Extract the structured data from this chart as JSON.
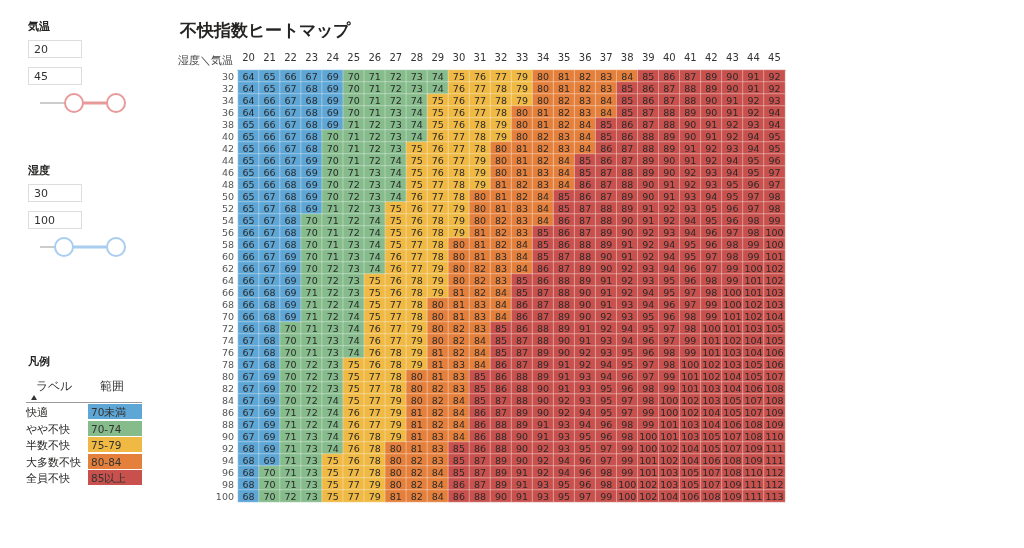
{
  "chart_data": [
    {
      "type": "heatmap",
      "title": "不快指数ヒートマップ",
      "annotations": [
        "湿度＼気温"
      ],
      "data_labels": true,
      "categories": [
        "20",
        "21",
        "22",
        "23",
        "24",
        "25",
        "26",
        "27",
        "28",
        "29",
        "30",
        "31",
        "32",
        "33",
        "34",
        "35",
        "36",
        "37",
        "38",
        "39",
        "40",
        "41",
        "42",
        "43",
        "44",
        "45"
      ],
      "y_categories": [
        "30",
        "32",
        "34",
        "36",
        "38",
        "40",
        "42",
        "44",
        "46",
        "48",
        "50",
        "52",
        "54",
        "56",
        "58",
        "60",
        "62",
        "64",
        "66",
        "68",
        "70",
        "72",
        "74",
        "76",
        "78",
        "80",
        "82",
        "84",
        "86",
        "88",
        "90",
        "92",
        "94",
        "96",
        "98",
        "100"
      ],
      "cells": [
        [
          64,
          65,
          66,
          67,
          69,
          70,
          71,
          72,
          73,
          74,
          75,
          76,
          77,
          79,
          80,
          81,
          82,
          83,
          84,
          85,
          86,
          87,
          89,
          90,
          91,
          92
        ],
        [
          64,
          65,
          67,
          68,
          69,
          70,
          71,
          72,
          73,
          74,
          76,
          77,
          78,
          79,
          80,
          81,
          82,
          83,
          85,
          86,
          87,
          88,
          89,
          90,
          91,
          92
        ],
        [
          64,
          66,
          67,
          68,
          69,
          70,
          71,
          72,
          74,
          75,
          76,
          77,
          78,
          79,
          80,
          82,
          83,
          84,
          85,
          86,
          87,
          88,
          90,
          91,
          92,
          93
        ],
        [
          64,
          66,
          67,
          68,
          69,
          70,
          71,
          73,
          74,
          75,
          76,
          77,
          78,
          80,
          81,
          82,
          83,
          84,
          85,
          87,
          88,
          89,
          90,
          91,
          92,
          94
        ],
        [
          65,
          66,
          67,
          68,
          69,
          71,
          72,
          73,
          74,
          75,
          76,
          78,
          79,
          80,
          81,
          82,
          84,
          85,
          86,
          87,
          88,
          90,
          91,
          92,
          93,
          94
        ],
        [
          65,
          66,
          67,
          68,
          70,
          71,
          72,
          73,
          74,
          76,
          77,
          78,
          79,
          80,
          82,
          83,
          84,
          85,
          86,
          88,
          89,
          90,
          91,
          92,
          94,
          95
        ],
        [
          65,
          66,
          67,
          68,
          70,
          71,
          72,
          73,
          75,
          76,
          77,
          78,
          80,
          81,
          82,
          83,
          84,
          86,
          87,
          88,
          89,
          91,
          92,
          93,
          94,
          95
        ],
        [
          65,
          66,
          67,
          69,
          70,
          71,
          72,
          74,
          75,
          76,
          77,
          79,
          80,
          81,
          82,
          84,
          85,
          86,
          87,
          89,
          90,
          91,
          92,
          94,
          95,
          96
        ],
        [
          65,
          66,
          68,
          69,
          70,
          71,
          73,
          74,
          75,
          76,
          78,
          79,
          80,
          81,
          83,
          84,
          85,
          87,
          88,
          89,
          90,
          92,
          93,
          94,
          95,
          97
        ],
        [
          65,
          66,
          68,
          69,
          70,
          72,
          73,
          74,
          75,
          77,
          78,
          79,
          81,
          82,
          83,
          84,
          86,
          87,
          88,
          90,
          91,
          92,
          93,
          95,
          96,
          97
        ],
        [
          65,
          67,
          68,
          69,
          70,
          72,
          73,
          74,
          76,
          77,
          78,
          80,
          81,
          82,
          84,
          85,
          86,
          87,
          89,
          90,
          91,
          93,
          94,
          95,
          97,
          98
        ],
        [
          65,
          67,
          68,
          69,
          71,
          72,
          73,
          75,
          76,
          77,
          79,
          80,
          81,
          83,
          84,
          85,
          87,
          88,
          89,
          91,
          92,
          93,
          95,
          96,
          97,
          98
        ],
        [
          65,
          67,
          68,
          70,
          71,
          72,
          74,
          75,
          76,
          78,
          79,
          80,
          82,
          83,
          84,
          86,
          87,
          88,
          90,
          91,
          92,
          94,
          95,
          96,
          98,
          99
        ],
        [
          66,
          67,
          68,
          70,
          71,
          72,
          74,
          75,
          76,
          78,
          79,
          81,
          82,
          83,
          85,
          86,
          87,
          89,
          90,
          92,
          93,
          94,
          96,
          97,
          98,
          100
        ],
        [
          66,
          67,
          68,
          70,
          71,
          73,
          74,
          75,
          77,
          78,
          80,
          81,
          82,
          84,
          85,
          86,
          88,
          89,
          91,
          92,
          94,
          95,
          96,
          98,
          99,
          100
        ],
        [
          66,
          67,
          69,
          70,
          71,
          73,
          74,
          76,
          77,
          78,
          80,
          81,
          83,
          84,
          85,
          87,
          88,
          90,
          91,
          92,
          94,
          95,
          97,
          98,
          99,
          101
        ],
        [
          66,
          67,
          69,
          70,
          72,
          73,
          74,
          76,
          77,
          79,
          80,
          82,
          83,
          84,
          86,
          87,
          89,
          90,
          92,
          93,
          94,
          96,
          97,
          99,
          100,
          102
        ],
        [
          66,
          67,
          69,
          70,
          72,
          73,
          75,
          76,
          78,
          79,
          80,
          82,
          83,
          85,
          86,
          88,
          89,
          91,
          92,
          93,
          95,
          96,
          98,
          99,
          101,
          102
        ],
        [
          66,
          68,
          69,
          71,
          72,
          73,
          75,
          76,
          78,
          79,
          81,
          82,
          84,
          85,
          87,
          88,
          90,
          91,
          92,
          94,
          95,
          97,
          98,
          100,
          101,
          103
        ],
        [
          66,
          68,
          69,
          71,
          72,
          74,
          75,
          77,
          78,
          80,
          81,
          83,
          84,
          86,
          87,
          88,
          90,
          91,
          93,
          94,
          96,
          97,
          99,
          100,
          102,
          103
        ],
        [
          66,
          68,
          69,
          71,
          72,
          74,
          75,
          77,
          78,
          80,
          81,
          83,
          84,
          86,
          87,
          89,
          90,
          92,
          93,
          95,
          96,
          98,
          99,
          101,
          102,
          104
        ],
        [
          66,
          68,
          70,
          71,
          73,
          74,
          76,
          77,
          79,
          80,
          82,
          83,
          85,
          86,
          88,
          89,
          91,
          92,
          94,
          95,
          97,
          98,
          100,
          101,
          103,
          105
        ],
        [
          67,
          68,
          70,
          71,
          73,
          74,
          76,
          77,
          79,
          80,
          82,
          84,
          85,
          87,
          88,
          90,
          91,
          93,
          94,
          96,
          97,
          99,
          101,
          102,
          104,
          105
        ],
        [
          67,
          68,
          70,
          71,
          73,
          74,
          76,
          78,
          79,
          81,
          82,
          84,
          85,
          87,
          89,
          90,
          92,
          93,
          95,
          96,
          98,
          99,
          101,
          103,
          104,
          106
        ],
        [
          67,
          68,
          70,
          72,
          73,
          75,
          76,
          78,
          79,
          81,
          83,
          84,
          86,
          87,
          89,
          91,
          92,
          94,
          95,
          97,
          98,
          100,
          102,
          103,
          105,
          106
        ],
        [
          67,
          69,
          70,
          72,
          73,
          75,
          77,
          78,
          80,
          81,
          83,
          85,
          86,
          88,
          89,
          91,
          93,
          94,
          96,
          97,
          99,
          101,
          102,
          104,
          105,
          107
        ],
        [
          67,
          69,
          70,
          72,
          73,
          75,
          77,
          78,
          80,
          82,
          83,
          85,
          86,
          88,
          90,
          91,
          93,
          95,
          96,
          98,
          99,
          101,
          103,
          104,
          106,
          108
        ],
        [
          67,
          69,
          70,
          72,
          74,
          75,
          77,
          79,
          80,
          82,
          84,
          85,
          87,
          88,
          90,
          92,
          93,
          95,
          97,
          98,
          100,
          102,
          103,
          105,
          107,
          108
        ],
        [
          67,
          69,
          71,
          72,
          74,
          76,
          77,
          79,
          81,
          82,
          84,
          86,
          87,
          89,
          90,
          92,
          94,
          95,
          97,
          99,
          100,
          102,
          104,
          105,
          107,
          109
        ],
        [
          67,
          69,
          71,
          72,
          74,
          76,
          77,
          79,
          81,
          82,
          84,
          86,
          88,
          89,
          91,
          93,
          94,
          96,
          98,
          99,
          101,
          103,
          104,
          106,
          108,
          109
        ],
        [
          67,
          69,
          71,
          73,
          74,
          76,
          78,
          79,
          81,
          83,
          84,
          86,
          88,
          90,
          91,
          93,
          95,
          96,
          98,
          100,
          101,
          103,
          105,
          107,
          108,
          110
        ],
        [
          68,
          69,
          71,
          73,
          74,
          76,
          78,
          80,
          81,
          83,
          85,
          86,
          88,
          90,
          92,
          93,
          95,
          97,
          99,
          100,
          102,
          104,
          105,
          107,
          109,
          111
        ],
        [
          68,
          69,
          71,
          73,
          75,
          76,
          78,
          80,
          82,
          83,
          85,
          87,
          89,
          90,
          92,
          94,
          96,
          97,
          99,
          101,
          102,
          104,
          106,
          108,
          109,
          111
        ],
        [
          68,
          70,
          71,
          73,
          75,
          77,
          78,
          80,
          82,
          84,
          85,
          87,
          89,
          91,
          92,
          94,
          96,
          98,
          99,
          101,
          103,
          105,
          107,
          108,
          110,
          112
        ],
        [
          68,
          70,
          71,
          73,
          75,
          77,
          79,
          80,
          82,
          84,
          86,
          87,
          89,
          91,
          93,
          95,
          96,
          98,
          100,
          102,
          103,
          105,
          107,
          109,
          111,
          112
        ],
        [
          68,
          70,
          72,
          73,
          75,
          77,
          79,
          81,
          82,
          84,
          86,
          88,
          90,
          91,
          93,
          95,
          97,
          99,
          100,
          102,
          104,
          106,
          108,
          109,
          111,
          113
        ]
      ]
    },
    {
      "type": "other",
      "annotations": [
        "気温",
        "20",
        "45",
        "湿度",
        "30",
        "100"
      ]
    },
    {
      "type": "other",
      "title": "凡例",
      "xlabel": "ラベル",
      "ylabel": "範囲",
      "categories": [
        "快適",
        "やや不快",
        "半数不快",
        "大多数不快",
        "全員不快"
      ],
      "value_labels": [
        "70未満",
        "70-74",
        "75-79",
        "80-84",
        "85以上"
      ],
      "values": [
        null,
        70,
        75,
        80,
        85
      ],
      "colors": [
        "#5ea6d6",
        "#86bb8b",
        "#efb944",
        "#e5803c",
        "#c8514d"
      ]
    }
  ]
}
